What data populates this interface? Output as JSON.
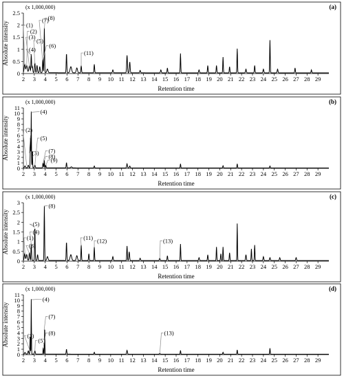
{
  "figure": {
    "y_title": "Absolute intensity",
    "x_title": "Retention time"
  },
  "chart_data": [
    {
      "type": "line",
      "panel_label": "(a)",
      "multiplier": "(x 1,000,000)",
      "ylim": [
        0,
        2.5
      ],
      "yticks": [
        "0",
        "0.5",
        "1",
        "1.5",
        "2",
        "2.5"
      ],
      "xlim": [
        2,
        30
      ],
      "xticks": [
        "2",
        "3",
        "4",
        "5",
        "6",
        "7",
        "8",
        "9",
        "10",
        "11",
        "12",
        "13",
        "14",
        "15",
        "16",
        "17",
        "18",
        "19",
        "20",
        "21",
        "22",
        "23",
        "24",
        "25",
        "26",
        "27",
        "28",
        "29"
      ],
      "xlabel": "Retention time",
      "ylabel": "Absolute intensity",
      "baseline": 0.03,
      "peaks": [
        {
          "x": 2.12,
          "y": 0.35,
          "w": 0.07
        },
        {
          "x": 2.3,
          "y": 0.3,
          "w": 0.08
        },
        {
          "x": 2.55,
          "y": 0.28,
          "w": 0.08
        },
        {
          "x": 2.72,
          "y": 0.75,
          "w": 0.04
        },
        {
          "x": 2.82,
          "y": 0.25,
          "w": 0.05
        },
        {
          "x": 3.05,
          "y": 0.4,
          "w": 0.05
        },
        {
          "x": 3.25,
          "y": 0.3,
          "w": 0.05
        },
        {
          "x": 3.5,
          "y": 0.25,
          "w": 0.05
        },
        {
          "x": 3.78,
          "y": 0.55,
          "w": 0.04
        },
        {
          "x": 3.92,
          "y": 1.85,
          "w": 0.035
        },
        {
          "x": 4.2,
          "y": 0.15,
          "w": 0.08
        },
        {
          "x": 5.95,
          "y": 0.8,
          "w": 0.04
        },
        {
          "x": 6.35,
          "y": 0.25,
          "w": 0.1
        },
        {
          "x": 6.9,
          "y": 0.2,
          "w": 0.08
        },
        {
          "x": 7.3,
          "y": 0.3,
          "w": 0.04
        },
        {
          "x": 8.5,
          "y": 0.35,
          "w": 0.04
        },
        {
          "x": 10.2,
          "y": 0.12,
          "w": 0.05
        },
        {
          "x": 11.5,
          "y": 0.72,
          "w": 0.05
        },
        {
          "x": 11.75,
          "y": 0.45,
          "w": 0.05
        },
        {
          "x": 12.7,
          "y": 0.1,
          "w": 0.05
        },
        {
          "x": 14.6,
          "y": 0.12,
          "w": 0.05
        },
        {
          "x": 15.2,
          "y": 0.2,
          "w": 0.04
        },
        {
          "x": 16.4,
          "y": 0.8,
          "w": 0.035
        },
        {
          "x": 18.1,
          "y": 0.12,
          "w": 0.05
        },
        {
          "x": 18.9,
          "y": 0.3,
          "w": 0.04
        },
        {
          "x": 19.7,
          "y": 0.3,
          "w": 0.04
        },
        {
          "x": 20.3,
          "y": 0.65,
          "w": 0.035
        },
        {
          "x": 20.9,
          "y": 0.25,
          "w": 0.04
        },
        {
          "x": 21.6,
          "y": 1.0,
          "w": 0.035
        },
        {
          "x": 22.4,
          "y": 0.15,
          "w": 0.05
        },
        {
          "x": 23.2,
          "y": 0.3,
          "w": 0.04
        },
        {
          "x": 24.0,
          "y": 0.15,
          "w": 0.05
        },
        {
          "x": 24.6,
          "y": 1.35,
          "w": 0.035
        },
        {
          "x": 25.3,
          "y": 0.15,
          "w": 0.05
        },
        {
          "x": 26.9,
          "y": 0.2,
          "w": 0.04
        },
        {
          "x": 28.4,
          "y": 0.12,
          "w": 0.04
        }
      ],
      "annotations": [
        {
          "text": "(1)",
          "x": 2.25,
          "y": 2.0,
          "peak_x": 2.12,
          "peak_y": 0.35
        },
        {
          "text": "(2)",
          "x": 2.62,
          "y": 1.75,
          "peak_x": 2.3,
          "peak_y": 0.3
        },
        {
          "text": "(3)",
          "x": 2.48,
          "y": 1.5,
          "peak_x": 2.55,
          "peak_y": 0.28
        },
        {
          "text": "(4)",
          "x": 2.5,
          "y": 1.0,
          "peak_x": 2.72,
          "peak_y": 0.75
        },
        {
          "text": "(5)",
          "x": 3.2,
          "y": 1.35,
          "peak_x": 3.05,
          "peak_y": 0.4
        },
        {
          "text": "(6)",
          "x": 4.35,
          "y": 1.15,
          "peak_x": 3.8,
          "peak_y": 0.55
        },
        {
          "text": "(7)",
          "x": 3.7,
          "y": 2.2,
          "peak_x": 3.75,
          "peak_y": 0.6
        },
        {
          "text": "(8)",
          "x": 4.25,
          "y": 2.3,
          "peak_x": 3.92,
          "peak_y": 1.85
        },
        {
          "text": "(11)",
          "x": 7.55,
          "y": 0.85,
          "peak_x": 7.3,
          "peak_y": 0.3
        }
      ]
    },
    {
      "type": "line",
      "panel_label": "(b)",
      "multiplier": "(x 1,000,000)",
      "ylim": [
        0,
        11
      ],
      "yticks": [
        "0",
        "1",
        "2",
        "3",
        "4",
        "5",
        "6",
        "7",
        "8",
        "9",
        "10",
        "11"
      ],
      "xlim": [
        2,
        30
      ],
      "xticks": [
        "2",
        "3",
        "4",
        "5",
        "6",
        "7",
        "8",
        "9",
        "10",
        "11",
        "12",
        "13",
        "14",
        "15",
        "16",
        "17",
        "18",
        "19",
        "20",
        "21",
        "22",
        "23",
        "24",
        "25",
        "26",
        "27",
        "28",
        "29"
      ],
      "xlabel": "Retention time",
      "ylabel": "Absolute intensity",
      "baseline": 0.08,
      "peaks": [
        {
          "x": 2.15,
          "y": 0.35,
          "w": 0.06
        },
        {
          "x": 2.45,
          "y": 0.5,
          "w": 0.05
        },
        {
          "x": 2.65,
          "y": 6.0,
          "w": 0.03
        },
        {
          "x": 2.72,
          "y": 10.2,
          "w": 0.025
        },
        {
          "x": 2.82,
          "y": 3.0,
          "w": 0.03
        },
        {
          "x": 3.05,
          "y": 0.5,
          "w": 0.05
        },
        {
          "x": 3.8,
          "y": 0.9,
          "w": 0.04
        },
        {
          "x": 3.92,
          "y": 1.4,
          "w": 0.03
        },
        {
          "x": 4.05,
          "y": 0.5,
          "w": 0.04
        },
        {
          "x": 5.95,
          "y": 0.95,
          "w": 0.04
        },
        {
          "x": 6.4,
          "y": 0.2,
          "w": 0.08
        },
        {
          "x": 8.5,
          "y": 0.35,
          "w": 0.04
        },
        {
          "x": 11.5,
          "y": 0.75,
          "w": 0.05
        },
        {
          "x": 11.75,
          "y": 0.35,
          "w": 0.05
        },
        {
          "x": 16.4,
          "y": 0.75,
          "w": 0.035
        },
        {
          "x": 20.3,
          "y": 0.4,
          "w": 0.04
        },
        {
          "x": 21.6,
          "y": 0.75,
          "w": 0.035
        },
        {
          "x": 24.6,
          "y": 0.35,
          "w": 0.04
        }
      ],
      "annotations": [
        {
          "text": "(2)",
          "x": 2.2,
          "y": 7.0,
          "peak_x": 2.3,
          "peak_y": 0.5
        },
        {
          "text": "(3)",
          "x": 2.8,
          "y": 2.8,
          "peak_x": 2.65,
          "peak_y": 6.0
        },
        {
          "text": "(4)",
          "x": 3.55,
          "y": 10.3,
          "peak_x": 2.72,
          "peak_y": 10.2
        },
        {
          "text": "(5)",
          "x": 3.55,
          "y": 5.5,
          "peak_x": 3.05,
          "peak_y": 0.5
        },
        {
          "text": "(7)",
          "x": 4.3,
          "y": 3.2,
          "peak_x": 3.8,
          "peak_y": 0.9
        },
        {
          "text": "(8)",
          "x": 4.3,
          "y": 2.2,
          "peak_x": 3.92,
          "peak_y": 1.4
        },
        {
          "text": "(9)",
          "x": 4.5,
          "y": 1.5,
          "peak_x": 4.05,
          "peak_y": 0.5
        }
      ]
    },
    {
      "type": "line",
      "panel_label": "(c)",
      "multiplier": "(x 1,000,000)",
      "ylim": [
        0,
        3
      ],
      "yticks": [
        "0",
        "0.5",
        "1",
        "1.5",
        "2",
        "2.5",
        "3"
      ],
      "xlim": [
        2,
        30
      ],
      "xticks": [
        "2",
        "3",
        "4",
        "5",
        "6",
        "7",
        "8",
        "9",
        "10",
        "11",
        "12",
        "13",
        "14",
        "15",
        "16",
        "17",
        "18",
        "19",
        "20",
        "21",
        "22",
        "23",
        "24",
        "25",
        "26",
        "27",
        "28",
        "29"
      ],
      "xlabel": "Retention time",
      "ylabel": "Absolute intensity",
      "baseline": 0.03,
      "peaks": [
        {
          "x": 2.12,
          "y": 0.35,
          "w": 0.06
        },
        {
          "x": 2.3,
          "y": 0.3,
          "w": 0.07
        },
        {
          "x": 2.55,
          "y": 0.4,
          "w": 0.05
        },
        {
          "x": 2.72,
          "y": 0.85,
          "w": 0.04
        },
        {
          "x": 3.05,
          "y": 1.75,
          "w": 0.035
        },
        {
          "x": 3.3,
          "y": 0.3,
          "w": 0.05
        },
        {
          "x": 3.92,
          "y": 2.8,
          "w": 0.035
        },
        {
          "x": 4.2,
          "y": 0.2,
          "w": 0.08
        },
        {
          "x": 5.95,
          "y": 0.95,
          "w": 0.04
        },
        {
          "x": 6.35,
          "y": 0.3,
          "w": 0.1
        },
        {
          "x": 6.9,
          "y": 0.25,
          "w": 0.08
        },
        {
          "x": 7.3,
          "y": 0.8,
          "w": 0.035
        },
        {
          "x": 8.0,
          "y": 0.35,
          "w": 0.04
        },
        {
          "x": 8.5,
          "y": 0.7,
          "w": 0.035
        },
        {
          "x": 10.2,
          "y": 0.2,
          "w": 0.05
        },
        {
          "x": 11.5,
          "y": 0.75,
          "w": 0.04
        },
        {
          "x": 11.7,
          "y": 0.45,
          "w": 0.05
        },
        {
          "x": 12.7,
          "y": 0.12,
          "w": 0.05
        },
        {
          "x": 14.5,
          "y": 0.12,
          "w": 0.05
        },
        {
          "x": 15.2,
          "y": 0.25,
          "w": 0.04
        },
        {
          "x": 16.4,
          "y": 0.85,
          "w": 0.035
        },
        {
          "x": 18.1,
          "y": 0.15,
          "w": 0.05
        },
        {
          "x": 18.9,
          "y": 0.3,
          "w": 0.04
        },
        {
          "x": 19.7,
          "y": 0.7,
          "w": 0.035
        },
        {
          "x": 20.1,
          "y": 0.35,
          "w": 0.04
        },
        {
          "x": 20.3,
          "y": 0.7,
          "w": 0.035
        },
        {
          "x": 20.9,
          "y": 0.4,
          "w": 0.04
        },
        {
          "x": 21.6,
          "y": 1.9,
          "w": 0.03
        },
        {
          "x": 22.4,
          "y": 0.3,
          "w": 0.05
        },
        {
          "x": 22.9,
          "y": 0.6,
          "w": 0.035
        },
        {
          "x": 23.2,
          "y": 0.8,
          "w": 0.035
        },
        {
          "x": 24.0,
          "y": 0.2,
          "w": 0.05
        },
        {
          "x": 24.6,
          "y": 0.15,
          "w": 0.05
        },
        {
          "x": 25.5,
          "y": 0.15,
          "w": 0.05
        },
        {
          "x": 27.0,
          "y": 0.15,
          "w": 0.05
        }
      ],
      "annotations": [
        {
          "text": "(1)",
          "x": 2.3,
          "y": 1.2,
          "peak_x": 2.15,
          "peak_y": 0.35
        },
        {
          "text": "(3)",
          "x": 2.5,
          "y": 0.8,
          "peak_x": 2.55,
          "peak_y": 0.4
        },
        {
          "text": "(4)",
          "x": 2.85,
          "y": 1.5,
          "peak_x": 2.72,
          "peak_y": 0.85
        },
        {
          "text": "(5)",
          "x": 2.85,
          "y": 1.9,
          "peak_x": 3.05,
          "peak_y": 1.75
        },
        {
          "text": "(8)",
          "x": 4.3,
          "y": 2.85,
          "peak_x": 3.92,
          "peak_y": 2.8
        },
        {
          "text": "(11)",
          "x": 7.5,
          "y": 1.2,
          "peak_x": 7.3,
          "peak_y": 0.8
        },
        {
          "text": "(12)",
          "x": 8.75,
          "y": 1.05,
          "peak_x": 8.5,
          "peak_y": 0.7
        },
        {
          "text": "(13)",
          "x": 14.8,
          "y": 1.05,
          "peak_x": 14.5,
          "peak_y": 0.12
        }
      ]
    },
    {
      "type": "line",
      "panel_label": "(d)",
      "multiplier": "(x 1,000,000)",
      "ylim": [
        0,
        11
      ],
      "yticks": [
        "0",
        "1",
        "2",
        "3",
        "4",
        "5",
        "6",
        "7",
        "8",
        "9",
        "10",
        "11"
      ],
      "xlim": [
        2,
        30
      ],
      "xticks": [
        "2",
        "3",
        "4",
        "5",
        "6",
        "7",
        "8",
        "9",
        "10",
        "11",
        "12",
        "13",
        "14",
        "15",
        "16",
        "17",
        "18",
        "19",
        "20",
        "21",
        "22",
        "23",
        "24",
        "25",
        "26",
        "27",
        "28",
        "29"
      ],
      "xlabel": "Retention time",
      "ylabel": "Absolute intensity",
      "baseline": 0.08,
      "peaks": [
        {
          "x": 2.15,
          "y": 0.3,
          "w": 0.06
        },
        {
          "x": 2.45,
          "y": 0.6,
          "w": 0.05
        },
        {
          "x": 2.62,
          "y": 3.2,
          "w": 0.03
        },
        {
          "x": 2.72,
          "y": 10.1,
          "w": 0.025
        },
        {
          "x": 3.05,
          "y": 0.6,
          "w": 0.05
        },
        {
          "x": 3.82,
          "y": 1.2,
          "w": 0.03
        },
        {
          "x": 3.95,
          "y": 5.2,
          "w": 0.025
        },
        {
          "x": 5.95,
          "y": 0.9,
          "w": 0.04
        },
        {
          "x": 8.5,
          "y": 0.35,
          "w": 0.04
        },
        {
          "x": 11.5,
          "y": 0.7,
          "w": 0.05
        },
        {
          "x": 14.5,
          "y": 0.15,
          "w": 0.05
        },
        {
          "x": 16.4,
          "y": 0.7,
          "w": 0.035
        },
        {
          "x": 20.3,
          "y": 0.35,
          "w": 0.04
        },
        {
          "x": 21.6,
          "y": 0.8,
          "w": 0.035
        },
        {
          "x": 24.6,
          "y": 1.1,
          "w": 0.035
        }
      ],
      "annotations": [
        {
          "text": "(3)",
          "x": 2.35,
          "y": 3.5,
          "peak_x": 2.55,
          "peak_y": 1.0
        },
        {
          "text": "(4)",
          "x": 3.75,
          "y": 10.2,
          "peak_x": 2.72,
          "peak_y": 10.1
        },
        {
          "text": "(5)",
          "x": 3.35,
          "y": 2.6,
          "peak_x": 3.05,
          "peak_y": 0.6
        },
        {
          "text": "(7)",
          "x": 4.3,
          "y": 7.0,
          "peak_x": 3.9,
          "peak_y": 4.5
        },
        {
          "text": "(8)",
          "x": 4.3,
          "y": 4.0,
          "peak_x": 3.82,
          "peak_y": 1.2
        },
        {
          "text": "(13)",
          "x": 14.9,
          "y": 4.0,
          "peak_x": 14.5,
          "peak_y": 0.15
        }
      ]
    }
  ]
}
